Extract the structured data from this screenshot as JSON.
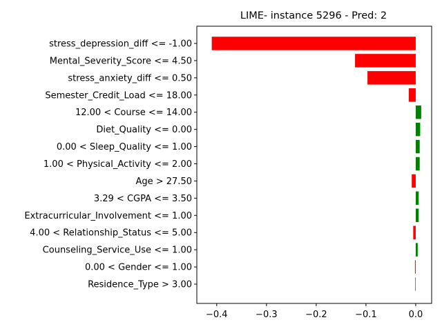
{
  "chart_data": {
    "type": "bar",
    "orientation": "horizontal",
    "title": "LIME- instance 5296 - Pred: 2",
    "xlabel": "",
    "ylabel": "",
    "xlim": [
      -0.44,
      0.032
    ],
    "xticks": [
      -0.4,
      -0.3,
      -0.2,
      -0.1,
      0.0
    ],
    "xtick_labels": [
      "−0.4",
      "−0.3",
      "−0.2",
      "−0.1",
      "0.0"
    ],
    "grid": false,
    "legend": "none",
    "colors": {
      "positive": "#008000",
      "negative": "#ff0000"
    },
    "categories": [
      "stress_depression_diff <= -1.00",
      "Mental_Severity_Score <= 4.50",
      "stress_anxiety_diff <= 0.50",
      "Semester_Credit_Load <= 18.00",
      "12.00 < Course <= 14.00",
      "Diet_Quality <= 0.00",
      "0.00 < Sleep_Quality <= 1.00",
      "1.00 < Physical_Activity <= 2.00",
      "Age > 27.50",
      "3.29 < CGPA <= 3.50",
      "Extracurricular_Involvement <= 1.00",
      "4.00 < Relationship_Status <= 5.00",
      "Counseling_Service_Use <= 1.00",
      "0.00 < Gender <= 1.00",
      "Residence_Type > 3.00"
    ],
    "values": [
      -0.41,
      -0.122,
      -0.097,
      -0.014,
      0.011,
      0.009,
      0.008,
      0.008,
      -0.008,
      0.006,
      0.006,
      -0.005,
      0.004,
      -0.0015,
      -0.001
    ]
  }
}
